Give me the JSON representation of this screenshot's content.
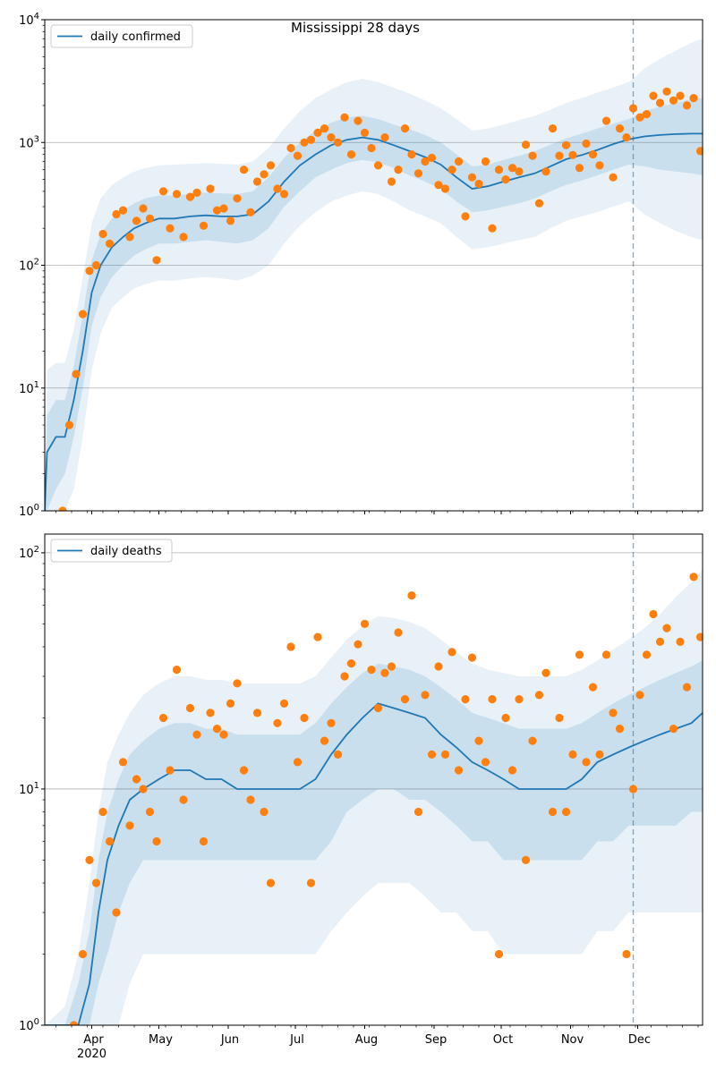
{
  "figure": {
    "title": "Mississippi 28 days",
    "colors": {
      "band": "#1f77b4",
      "median": "#1f77b4",
      "observed": "#ff7f0e",
      "grid": "#b0b0b0",
      "vline": "#1f77b4"
    }
  },
  "chart_data": [
    {
      "type": "line",
      "title": "Mississippi 28 days",
      "yscale": "log",
      "ylim": [
        1,
        10000
      ],
      "yticks": [
        {
          "value": 1,
          "label": "10^0"
        },
        {
          "value": 10,
          "label": "10^1"
        },
        {
          "value": 100,
          "label": "10^2"
        },
        {
          "value": 1000,
          "label": "10^3"
        },
        {
          "value": 10000,
          "label": "10^4"
        }
      ],
      "xlim": [
        "2020-03-11",
        "2020-12-30"
      ],
      "xticks": [],
      "legend": {
        "placement": "top-left",
        "label": "daily confirmed"
      },
      "grid": "y-major",
      "forecast_start": "2020-11-29",
      "median": {
        "dates": [
          "2020-03-11",
          "2020-03-12",
          "2020-03-16",
          "2020-03-20",
          "2020-03-24",
          "2020-03-28",
          "2020-04-01",
          "2020-04-05",
          "2020-04-10",
          "2020-04-15",
          "2020-04-20",
          "2020-04-25",
          "2020-05-01",
          "2020-05-08",
          "2020-05-15",
          "2020-05-22",
          "2020-05-29",
          "2020-06-05",
          "2020-06-12",
          "2020-06-19",
          "2020-06-26",
          "2020-07-03",
          "2020-07-10",
          "2020-07-17",
          "2020-07-24",
          "2020-07-31",
          "2020-08-07",
          "2020-08-14",
          "2020-08-21",
          "2020-08-28",
          "2020-09-04",
          "2020-09-11",
          "2020-09-18",
          "2020-09-25",
          "2020-10-02",
          "2020-10-09",
          "2020-10-16",
          "2020-10-23",
          "2020-10-30",
          "2020-11-06",
          "2020-11-13",
          "2020-11-20",
          "2020-11-27",
          "2020-12-04",
          "2020-12-11",
          "2020-12-18",
          "2020-12-25",
          "2020-12-30"
        ],
        "values": [
          1,
          3,
          4,
          4,
          8,
          20,
          60,
          100,
          140,
          170,
          200,
          220,
          240,
          240,
          250,
          255,
          250,
          250,
          260,
          330,
          480,
          650,
          800,
          950,
          1050,
          1100,
          1050,
          950,
          850,
          760,
          660,
          520,
          420,
          440,
          480,
          520,
          560,
          640,
          730,
          790,
          870,
          970,
          1060,
          1120,
          1150,
          1170,
          1180,
          1180
        ]
      },
      "band_inner": {
        "lower": [
          1,
          1,
          1.5,
          2,
          4,
          10,
          32,
          55,
          80,
          100,
          120,
          135,
          150,
          150,
          155,
          160,
          155,
          150,
          160,
          200,
          300,
          400,
          520,
          600,
          680,
          720,
          690,
          620,
          540,
          480,
          420,
          330,
          270,
          280,
          300,
          320,
          350,
          400,
          450,
          490,
          540,
          600,
          660,
          640,
          600,
          580,
          560,
          540
        ],
        "upper": [
          1,
          6,
          8,
          8,
          15,
          40,
          110,
          180,
          240,
          280,
          320,
          350,
          370,
          370,
          380,
          390,
          385,
          380,
          400,
          520,
          750,
          1000,
          1250,
          1450,
          1600,
          1650,
          1550,
          1400,
          1280,
          1150,
          1000,
          800,
          640,
          660,
          720,
          780,
          850,
          960,
          1080,
          1180,
          1300,
          1420,
          1550,
          1800,
          1950,
          2100,
          2250,
          2300
        ]
      },
      "band_outer": {
        "lower": [
          1,
          1,
          1,
          1,
          1.5,
          4,
          14,
          28,
          45,
          55,
          65,
          70,
          75,
          75,
          78,
          80,
          78,
          75,
          82,
          100,
          150,
          210,
          270,
          330,
          370,
          400,
          380,
          330,
          280,
          250,
          220,
          170,
          135,
          140,
          150,
          160,
          170,
          200,
          230,
          250,
          270,
          300,
          330,
          260,
          220,
          190,
          170,
          160
        ],
        "upper": [
          1,
          14,
          16,
          16,
          30,
          80,
          220,
          350,
          450,
          520,
          580,
          620,
          650,
          660,
          670,
          680,
          670,
          660,
          700,
          900,
          1300,
          1800,
          2300,
          2700,
          3100,
          3300,
          3100,
          2800,
          2500,
          2200,
          1900,
          1550,
          1250,
          1300,
          1400,
          1520,
          1650,
          1850,
          2100,
          2300,
          2550,
          2800,
          3100,
          4000,
          4800,
          5600,
          6500,
          7000
        ]
      },
      "observed": {
        "dates": [
          "2020-03-19",
          "2020-03-22",
          "2020-03-25",
          "2020-03-28",
          "2020-03-31",
          "2020-04-03",
          "2020-04-06",
          "2020-04-09",
          "2020-04-12",
          "2020-04-15",
          "2020-04-18",
          "2020-04-21",
          "2020-04-24",
          "2020-04-27",
          "2020-04-30",
          "2020-05-03",
          "2020-05-06",
          "2020-05-09",
          "2020-05-12",
          "2020-05-15",
          "2020-05-18",
          "2020-05-21",
          "2020-05-24",
          "2020-05-27",
          "2020-05-30",
          "2020-06-02",
          "2020-06-05",
          "2020-06-08",
          "2020-06-11",
          "2020-06-14",
          "2020-06-17",
          "2020-06-20",
          "2020-06-23",
          "2020-06-26",
          "2020-06-29",
          "2020-07-02",
          "2020-07-05",
          "2020-07-08",
          "2020-07-11",
          "2020-07-14",
          "2020-07-17",
          "2020-07-20",
          "2020-07-23",
          "2020-07-26",
          "2020-07-29",
          "2020-08-01",
          "2020-08-04",
          "2020-08-07",
          "2020-08-10",
          "2020-08-13",
          "2020-08-16",
          "2020-08-19",
          "2020-08-22",
          "2020-08-25",
          "2020-08-28",
          "2020-08-31",
          "2020-09-03",
          "2020-09-06",
          "2020-09-09",
          "2020-09-12",
          "2020-09-15",
          "2020-09-18",
          "2020-09-21",
          "2020-09-24",
          "2020-09-27",
          "2020-09-30",
          "2020-10-03",
          "2020-10-06",
          "2020-10-09",
          "2020-10-12",
          "2020-10-15",
          "2020-10-18",
          "2020-10-21",
          "2020-10-24",
          "2020-10-27",
          "2020-10-30",
          "2020-11-02",
          "2020-11-05",
          "2020-11-08",
          "2020-11-11",
          "2020-11-14",
          "2020-11-17",
          "2020-11-20",
          "2020-11-23",
          "2020-11-26",
          "2020-11-29",
          "2020-12-02",
          "2020-12-05",
          "2020-12-08",
          "2020-12-11",
          "2020-12-14",
          "2020-12-17",
          "2020-12-20",
          "2020-12-23",
          "2020-12-26",
          "2020-12-29"
        ],
        "values": [
          1,
          5,
          13,
          40,
          90,
          100,
          180,
          150,
          260,
          280,
          170,
          230,
          290,
          240,
          110,
          400,
          200,
          380,
          170,
          360,
          390,
          210,
          420,
          280,
          290,
          230,
          350,
          600,
          270,
          480,
          550,
          650,
          420,
          380,
          900,
          780,
          1000,
          1050,
          1200,
          1300,
          1100,
          1000,
          1600,
          800,
          1500,
          1200,
          900,
          650,
          1100,
          480,
          600,
          1300,
          800,
          560,
          700,
          750,
          450,
          420,
          600,
          700,
          250,
          520,
          460,
          700,
          200,
          600,
          500,
          620,
          580,
          960,
          780,
          320,
          580,
          1300,
          780,
          950,
          790,
          620,
          980,
          800,
          650,
          1500,
          520,
          1300,
          1100,
          1900,
          1600,
          1700,
          2400,
          2100,
          2600,
          2200,
          2400,
          2000,
          2300,
          850
        ]
      }
    },
    {
      "type": "line",
      "yscale": "log",
      "ylim": [
        1,
        120
      ],
      "yticks": [
        {
          "value": 1,
          "label": "10^0"
        },
        {
          "value": 10,
          "label": "10^1"
        },
        {
          "value": 100,
          "label": "10^2"
        }
      ],
      "xlim": [
        "2020-03-11",
        "2020-12-30"
      ],
      "xticks": [
        {
          "date": "2020-04-01",
          "label": "Apr",
          "sublabel": "2020"
        },
        {
          "date": "2020-05-01",
          "label": "May"
        },
        {
          "date": "2020-06-01",
          "label": "Jun"
        },
        {
          "date": "2020-07-01",
          "label": "Jul"
        },
        {
          "date": "2020-08-01",
          "label": "Aug"
        },
        {
          "date": "2020-09-01",
          "label": "Sep"
        },
        {
          "date": "2020-10-01",
          "label": "Oct"
        },
        {
          "date": "2020-11-01",
          "label": "Nov"
        },
        {
          "date": "2020-12-01",
          "label": "Dec"
        }
      ],
      "legend": {
        "placement": "top-left",
        "label": "daily deaths"
      },
      "grid": "y-major",
      "forecast_start": "2020-11-29",
      "median": {
        "dates": [
          "2020-03-11",
          "2020-03-20",
          "2020-03-26",
          "2020-03-31",
          "2020-04-04",
          "2020-04-08",
          "2020-04-13",
          "2020-04-18",
          "2020-04-24",
          "2020-05-01",
          "2020-05-08",
          "2020-05-15",
          "2020-05-22",
          "2020-05-29",
          "2020-06-05",
          "2020-06-12",
          "2020-06-19",
          "2020-06-26",
          "2020-07-03",
          "2020-07-10",
          "2020-07-17",
          "2020-07-24",
          "2020-07-31",
          "2020-08-07",
          "2020-08-14",
          "2020-08-21",
          "2020-08-28",
          "2020-09-04",
          "2020-09-11",
          "2020-09-18",
          "2020-09-25",
          "2020-10-02",
          "2020-10-09",
          "2020-10-16",
          "2020-10-23",
          "2020-10-30",
          "2020-11-06",
          "2020-11-13",
          "2020-11-20",
          "2020-11-27",
          "2020-12-04",
          "2020-12-11",
          "2020-12-18",
          "2020-12-25",
          "2020-12-30"
        ],
        "values": [
          1,
          1,
          1,
          1.5,
          3,
          5,
          7,
          9,
          10,
          11,
          12,
          12,
          11,
          11,
          10,
          10,
          10,
          10,
          10,
          11,
          14,
          17,
          20,
          23,
          22,
          21,
          20,
          17,
          15,
          13,
          12,
          11,
          10,
          10,
          10,
          10,
          11,
          13,
          14,
          15,
          16,
          17,
          18,
          19,
          21
        ]
      },
      "band_inner": {
        "lower": [
          1,
          1,
          1,
          1,
          1.5,
          2,
          3,
          4,
          5,
          5,
          5,
          5,
          5,
          5,
          5,
          5,
          5,
          5,
          5,
          5,
          6,
          8,
          9,
          10,
          10,
          9,
          9,
          8,
          7,
          6,
          6,
          5,
          5,
          5,
          5,
          5,
          5,
          6,
          6,
          7,
          7,
          7,
          7,
          8,
          8
        ],
        "upper": [
          1,
          1,
          1.5,
          2.5,
          5,
          8,
          11,
          14,
          16,
          18,
          19,
          19,
          18,
          18,
          17,
          17,
          17,
          17,
          17,
          19,
          23,
          27,
          31,
          34,
          33,
          32,
          30,
          27,
          24,
          21,
          20,
          19,
          18,
          18,
          18,
          18,
          19,
          21,
          23,
          25,
          27,
          29,
          31,
          33,
          35
        ]
      },
      "band_outer": {
        "lower": [
          1,
          1,
          1,
          1,
          1,
          1,
          1,
          1.5,
          2,
          2,
          2,
          2,
          2,
          2,
          2,
          2,
          2,
          2,
          2,
          2,
          2.5,
          3,
          3.5,
          4,
          4,
          4,
          3.5,
          3,
          3,
          2.5,
          2.5,
          2,
          2,
          2,
          2,
          2,
          2,
          2.5,
          2.5,
          3,
          3,
          3,
          3,
          3,
          3
        ],
        "upper": [
          1,
          1.2,
          2,
          4,
          8,
          13,
          17,
          21,
          25,
          28,
          30,
          30,
          29,
          29,
          28,
          28,
          28,
          28,
          28,
          30,
          36,
          43,
          49,
          54,
          53,
          51,
          48,
          43,
          38,
          34,
          32,
          31,
          30,
          30,
          30,
          30,
          32,
          35,
          39,
          43,
          48,
          55,
          65,
          75,
          85
        ]
      },
      "observed": {
        "dates": [
          "2020-03-24",
          "2020-03-28",
          "2020-03-31",
          "2020-04-03",
          "2020-04-06",
          "2020-04-09",
          "2020-04-12",
          "2020-04-15",
          "2020-04-18",
          "2020-04-21",
          "2020-04-24",
          "2020-04-27",
          "2020-04-30",
          "2020-05-03",
          "2020-05-06",
          "2020-05-09",
          "2020-05-12",
          "2020-05-15",
          "2020-05-18",
          "2020-05-21",
          "2020-05-24",
          "2020-05-27",
          "2020-05-30",
          "2020-06-02",
          "2020-06-05",
          "2020-06-08",
          "2020-06-11",
          "2020-06-14",
          "2020-06-17",
          "2020-06-20",
          "2020-06-23",
          "2020-06-26",
          "2020-06-29",
          "2020-07-02",
          "2020-07-05",
          "2020-07-08",
          "2020-07-11",
          "2020-07-14",
          "2020-07-17",
          "2020-07-20",
          "2020-07-23",
          "2020-07-26",
          "2020-07-29",
          "2020-08-01",
          "2020-08-04",
          "2020-08-07",
          "2020-08-10",
          "2020-08-13",
          "2020-08-16",
          "2020-08-19",
          "2020-08-22",
          "2020-08-25",
          "2020-08-28",
          "2020-08-31",
          "2020-09-03",
          "2020-09-06",
          "2020-09-09",
          "2020-09-12",
          "2020-09-15",
          "2020-09-18",
          "2020-09-21",
          "2020-09-24",
          "2020-09-27",
          "2020-09-30",
          "2020-10-03",
          "2020-10-06",
          "2020-10-09",
          "2020-10-12",
          "2020-10-15",
          "2020-10-18",
          "2020-10-21",
          "2020-10-24",
          "2020-10-27",
          "2020-10-30",
          "2020-11-02",
          "2020-11-05",
          "2020-11-08",
          "2020-11-11",
          "2020-11-14",
          "2020-11-17",
          "2020-11-20",
          "2020-11-23",
          "2020-11-26",
          "2020-11-29",
          "2020-12-02",
          "2020-12-05",
          "2020-12-08",
          "2020-12-11",
          "2020-12-14",
          "2020-12-17",
          "2020-12-20",
          "2020-12-23",
          "2020-12-26",
          "2020-12-29"
        ],
        "values": [
          1,
          2,
          5,
          4,
          8,
          6,
          3,
          13,
          7,
          11,
          10,
          8,
          6,
          20,
          12,
          32,
          9,
          22,
          17,
          6,
          21,
          18,
          17,
          23,
          28,
          12,
          9,
          21,
          8,
          4,
          19,
          23,
          40,
          13,
          20,
          4,
          44,
          16,
          19,
          14,
          30,
          34,
          41,
          50,
          32,
          22,
          31,
          33,
          46,
          24,
          66,
          8,
          25,
          14,
          33,
          14,
          38,
          12,
          24,
          36,
          16,
          13,
          24,
          2,
          20,
          12,
          24,
          5,
          16,
          25,
          31,
          8,
          20,
          8,
          14,
          37,
          13,
          27,
          14,
          37,
          21,
          18,
          2,
          10,
          25,
          37,
          55,
          42,
          48,
          18,
          42,
          27,
          79,
          44
        ]
      }
    }
  ]
}
